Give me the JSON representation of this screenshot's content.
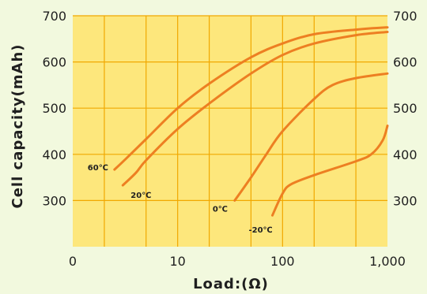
{
  "chart_data": {
    "type": "line",
    "xlabel": "Load:(Ω)",
    "ylabel": "Cell capacity(mAh)",
    "x_scale": "log",
    "xlim": [
      1,
      1000
    ],
    "ylim": [
      200,
      700
    ],
    "x_ticks": [
      {
        "value": 1,
        "label": "0"
      },
      {
        "value": 10,
        "label": "10"
      },
      {
        "value": 100,
        "label": "100"
      },
      {
        "value": 1000,
        "label": "1,000"
      }
    ],
    "y_ticks": [
      300,
      400,
      500,
      600,
      700
    ],
    "y_tick_labels": [
      "300",
      "400",
      "500",
      "600",
      "700"
    ],
    "grid": true,
    "colors": {
      "background": "#f2f9de",
      "plot_area": "#fde77c",
      "grid": "#f1a800",
      "series": "#ed7f22",
      "text": "#1f1f1f"
    },
    "series": [
      {
        "name": "60℃",
        "points": [
          [
            2.5,
            367
          ],
          [
            3.2,
            390
          ],
          [
            5,
            433
          ],
          [
            10,
            500
          ],
          [
            20,
            553
          ],
          [
            50,
            610
          ],
          [
            100,
            640
          ],
          [
            200,
            660
          ],
          [
            500,
            670
          ],
          [
            1000,
            675
          ]
        ]
      },
      {
        "name": "20℃",
        "points": [
          [
            3,
            333
          ],
          [
            4,
            360
          ],
          [
            5,
            387
          ],
          [
            10,
            455
          ],
          [
            20,
            510
          ],
          [
            50,
            575
          ],
          [
            100,
            615
          ],
          [
            200,
            640
          ],
          [
            500,
            658
          ],
          [
            1000,
            665
          ]
        ]
      },
      {
        "name": "0℃",
        "points": [
          [
            35,
            300
          ],
          [
            50,
            350
          ],
          [
            70,
            400
          ],
          [
            100,
            450
          ],
          [
            200,
            520
          ],
          [
            300,
            550
          ],
          [
            500,
            565
          ],
          [
            1000,
            575
          ]
        ]
      },
      {
        "name": "-20℃",
        "points": [
          [
            80,
            268
          ],
          [
            100,
            315
          ],
          [
            120,
            335
          ],
          [
            200,
            355
          ],
          [
            500,
            385
          ],
          [
            700,
            400
          ],
          [
            900,
            430
          ],
          [
            1000,
            462
          ]
        ]
      }
    ]
  }
}
